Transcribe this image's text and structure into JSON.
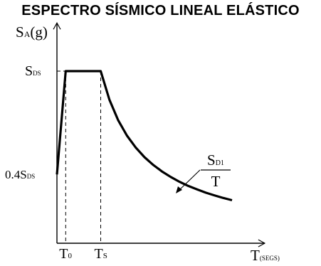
{
  "chart_data": {
    "type": "line",
    "title": "ESPECTRO SÍSMICO LINEAL ELÁSTICO",
    "ylabel": {
      "main": "S",
      "sub": "A",
      "rest": "(g)"
    },
    "xlabel": {
      "main": "T",
      "sub": "(SEGS)"
    },
    "y_ticks": [
      {
        "id": "sds",
        "prefix": "",
        "main": "S",
        "sub": "DS"
      },
      {
        "id": "04sds",
        "prefix": "0.4",
        "main": "S",
        "sub": "DS"
      }
    ],
    "x_ticks": [
      {
        "id": "t0",
        "main": "T",
        "sub": "0"
      },
      {
        "id": "ts",
        "main": "T",
        "sub": "S"
      }
    ],
    "annotation": {
      "numerator_main": "S",
      "numerator_sub": "D1",
      "denominator": "T"
    },
    "series": [
      {
        "x": [
          0,
          0.2,
          1.0,
          1.2,
          1.4,
          1.6,
          1.8,
          2.0,
          2.2,
          2.4,
          2.6,
          2.8,
          3.0,
          3.2,
          3.4,
          3.6,
          3.8,
          4.0
        ],
        "y": [
          0.4,
          1.0,
          1.0,
          0.833,
          0.714,
          0.625,
          0.556,
          0.5,
          0.455,
          0.417,
          0.385,
          0.357,
          0.333,
          0.313,
          0.294,
          0.278,
          0.263,
          0.25
        ]
      }
    ],
    "reference_lines": [
      {
        "x": 0.2,
        "y": 1.0
      },
      {
        "x": 1.0,
        "y": 1.0
      }
    ],
    "xlim": [
      0,
      4.6
    ],
    "ylim": [
      0,
      1.28
    ],
    "grid": false
  }
}
